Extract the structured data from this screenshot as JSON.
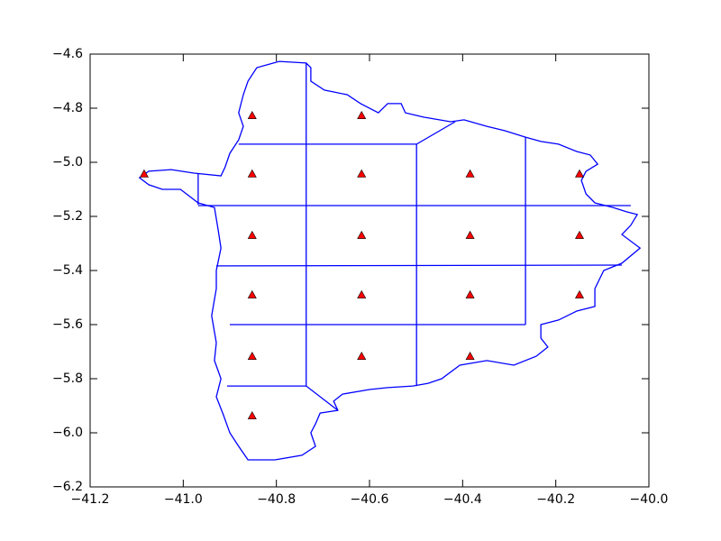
{
  "chart_data": {
    "type": "scatter",
    "xlim": [
      -41.2,
      -40.0
    ],
    "ylim": [
      -6.2,
      -4.6
    ],
    "xticks": [
      {
        "value": -41.2,
        "label": "−41.2"
      },
      {
        "value": -41.0,
        "label": "−41.0"
      },
      {
        "value": -40.8,
        "label": "−40.8"
      },
      {
        "value": -40.6,
        "label": "−40.6"
      },
      {
        "value": -40.4,
        "label": "−40.4"
      },
      {
        "value": -40.2,
        "label": "−40.2"
      },
      {
        "value": -40.0,
        "label": "−40.0"
      }
    ],
    "yticks": [
      {
        "value": -6.2,
        "label": "−6.2"
      },
      {
        "value": -6.0,
        "label": "−6.0"
      },
      {
        "value": -5.8,
        "label": "−5.8"
      },
      {
        "value": -5.6,
        "label": "−5.6"
      },
      {
        "value": -5.4,
        "label": "−5.4"
      },
      {
        "value": -5.2,
        "label": "−5.2"
      },
      {
        "value": -5.0,
        "label": "−5.0"
      },
      {
        "value": -4.8,
        "label": "−4.8"
      },
      {
        "value": -4.6,
        "label": "−4.6"
      }
    ],
    "grid": false,
    "line_color": "#0000ff",
    "outline": {
      "x": [
        -40.794,
        -40.736,
        -40.726,
        -40.726,
        -40.697,
        -40.648,
        -40.619,
        -40.581,
        -40.561,
        -40.532,
        -40.523,
        -40.484,
        -40.426,
        -40.397,
        -40.348,
        -40.31,
        -40.265,
        -40.232,
        -40.194,
        -40.155,
        -40.126,
        -40.11,
        -40.135,
        -40.145,
        -40.135,
        -40.116,
        -40.077,
        -40.048,
        -40.025,
        -40.039,
        -40.058,
        -40.019,
        -40.058,
        -40.097,
        -40.116,
        -40.116,
        -40.155,
        -40.194,
        -40.232,
        -40.232,
        -40.217,
        -40.242,
        -40.29,
        -40.348,
        -40.406,
        -40.445,
        -40.474,
        -40.507,
        -40.561,
        -40.6,
        -40.658,
        -40.677,
        -40.668,
        -40.706,
        -40.716,
        -40.726,
        -40.716,
        -40.745,
        -40.803,
        -40.861,
        -40.881,
        -40.9,
        -40.914,
        -40.929,
        -40.919,
        -40.933,
        -40.929,
        -40.939,
        -40.929,
        -40.929,
        -40.919,
        -40.925,
        -40.933,
        -40.968,
        -41.006,
        -41.045,
        -41.074,
        -41.094,
        -41.074,
        -41.026,
        -40.977,
        -40.919,
        -40.91,
        -40.9,
        -40.881,
        -40.871,
        -40.881,
        -40.871,
        -40.861,
        -40.842,
        -40.794
      ],
      "y": [
        -4.627,
        -4.633,
        -4.65,
        -4.7,
        -4.733,
        -4.75,
        -4.783,
        -4.817,
        -4.783,
        -4.783,
        -4.817,
        -4.833,
        -4.85,
        -4.843,
        -4.867,
        -4.883,
        -4.907,
        -4.923,
        -4.933,
        -4.96,
        -4.973,
        -5.007,
        -5.033,
        -5.067,
        -5.117,
        -5.15,
        -5.167,
        -5.183,
        -5.193,
        -5.233,
        -5.267,
        -5.317,
        -5.373,
        -5.4,
        -5.467,
        -5.533,
        -5.55,
        -5.583,
        -5.6,
        -5.65,
        -5.683,
        -5.717,
        -5.75,
        -5.733,
        -5.75,
        -5.8,
        -5.817,
        -5.827,
        -5.833,
        -5.84,
        -5.857,
        -5.883,
        -5.917,
        -5.927,
        -5.967,
        -6.0,
        -6.05,
        -6.083,
        -6.1,
        -6.1,
        -6.05,
        -6.0,
        -5.933,
        -5.867,
        -5.8,
        -5.733,
        -5.667,
        -5.567,
        -5.467,
        -5.4,
        -5.317,
        -5.25,
        -5.167,
        -5.15,
        -5.1,
        -5.1,
        -5.083,
        -5.057,
        -5.033,
        -5.027,
        -5.04,
        -5.05,
        -5.017,
        -4.967,
        -4.917,
        -4.867,
        -4.817,
        -4.75,
        -4.7,
        -4.65,
        -4.627
      ]
    },
    "cells": [
      {
        "x": [
          -40.881,
          -40.499,
          -40.416
        ],
        "y": [
          -4.933,
          -4.933,
          -4.85
        ]
      },
      {
        "x": [
          -40.736,
          -40.736,
          -40.668
        ],
        "y": [
          -4.633,
          -5.827,
          -5.917
        ]
      },
      {
        "x": [
          -40.499,
          -40.499
        ],
        "y": [
          -4.933,
          -5.827
        ]
      },
      {
        "x": [
          -40.265,
          -40.265
        ],
        "y": [
          -4.907,
          -5.6
        ]
      },
      {
        "x": [
          -40.968,
          -40.968
        ],
        "y": [
          -5.043,
          -5.157
        ]
      },
      {
        "x": [
          -40.968,
          -40.039
        ],
        "y": [
          -5.16,
          -5.16
        ]
      },
      {
        "x": [
          -40.929,
          -40.058
        ],
        "y": [
          -5.383,
          -5.38
        ]
      },
      {
        "x": [
          -40.9,
          -40.265
        ],
        "y": [
          -5.6,
          -5.6
        ]
      },
      {
        "x": [
          -40.906,
          -40.736
        ],
        "y": [
          -5.827,
          -5.827
        ]
      }
    ],
    "points": {
      "color": "#ff0000",
      "marker": "triangle",
      "x": [
        -40.852,
        -40.617,
        -41.084,
        -40.852,
        -40.617,
        -40.384,
        -40.149,
        -40.852,
        -40.617,
        -40.384,
        -40.149,
        -40.852,
        -40.617,
        -40.384,
        -40.149,
        -40.852,
        -40.617,
        -40.384,
        -40.852
      ],
      "y": [
        -4.827,
        -4.827,
        -5.043,
        -5.043,
        -5.043,
        -5.043,
        -5.043,
        -5.27,
        -5.27,
        -5.27,
        -5.27,
        -5.49,
        -5.49,
        -5.49,
        -5.49,
        -5.717,
        -5.717,
        -5.717,
        -5.937
      ]
    }
  }
}
